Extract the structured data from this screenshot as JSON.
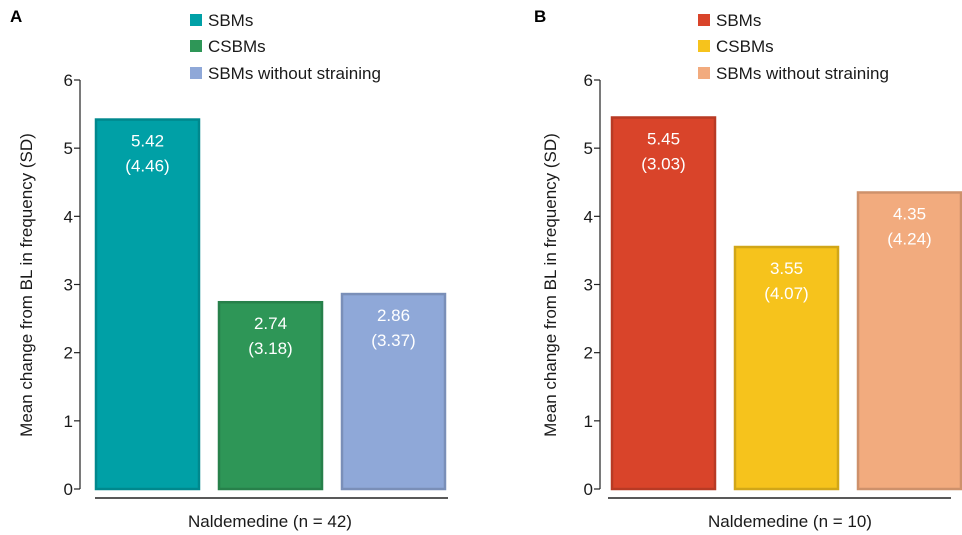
{
  "chart_data": [
    {
      "type": "bar",
      "panel": "A",
      "categories": [
        "SBMs",
        "CSBMs",
        "SBMs without straining"
      ],
      "series": [
        {
          "name": "SBMs",
          "value": 5.42,
          "sd": 4.46,
          "label": "5.42",
          "sd_label": "(4.46)",
          "color": "#00a0a6"
        },
        {
          "name": "CSBMs",
          "value": 2.74,
          "sd": 3.18,
          "label": "2.74",
          "sd_label": "(3.18)",
          "color": "#2e9657"
        },
        {
          "name": "SBMs without straining",
          "value": 2.86,
          "sd": 3.37,
          "label": "2.86",
          "sd_label": "(3.37)",
          "color": "#8fa8d8"
        }
      ],
      "title": "",
      "xlabel": "Naldemedine (n = 42)",
      "ylabel": "Mean change from BL in frequency (SD)",
      "ylim": [
        0,
        6
      ],
      "yticks": [
        "0",
        "1",
        "2",
        "3",
        "4",
        "5",
        "6"
      ],
      "legend_position": "top-right",
      "grid": false
    },
    {
      "type": "bar",
      "panel": "B",
      "categories": [
        "SBMs",
        "CSBMs",
        "SBMs without straining"
      ],
      "series": [
        {
          "name": "SBMs",
          "value": 5.45,
          "sd": 3.03,
          "label": "5.45",
          "sd_label": "(3.03)",
          "color": "#d9442a"
        },
        {
          "name": "CSBMs",
          "value": 3.55,
          "sd": 4.07,
          "label": "3.55",
          "sd_label": "(4.07)",
          "color": "#f6c31c"
        },
        {
          "name": "SBMs without straining",
          "value": 4.35,
          "sd": 4.24,
          "label": "4.35",
          "sd_label": "(4.24)",
          "color": "#f2ab7e"
        }
      ],
      "title": "",
      "xlabel": "Naldemedine (n = 10)",
      "ylabel": "Mean change from BL in frequency (SD)",
      "ylim": [
        0,
        6
      ],
      "yticks": [
        "0",
        "1",
        "2",
        "3",
        "4",
        "5",
        "6"
      ],
      "legend_position": "top-right",
      "grid": false
    }
  ]
}
